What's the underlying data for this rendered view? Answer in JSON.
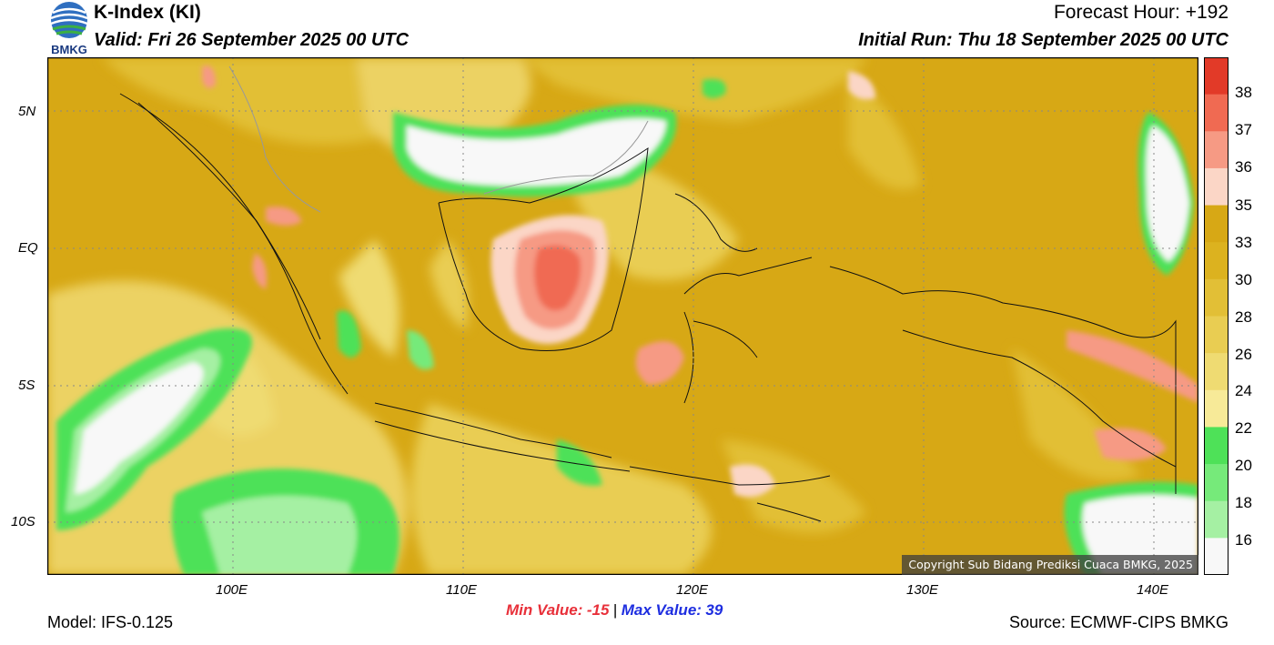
{
  "header": {
    "title": "K-Index (KI)",
    "valid": "Valid: Fri 26 September 2025 00 UTC",
    "forecast_hour": "Forecast Hour: +192",
    "initial_run": "Initial Run: Thu 18 September 2025 00 UTC",
    "logo_text": "BMKG"
  },
  "axes": {
    "lat_ticks": [
      "5N",
      "EQ",
      "5S",
      "10S"
    ],
    "lon_ticks": [
      "100E",
      "110E",
      "120E",
      "130E",
      "140E"
    ]
  },
  "colorbar": {
    "labels": [
      "38",
      "37",
      "36",
      "35",
      "33",
      "30",
      "28",
      "26",
      "24",
      "22",
      "20",
      "18",
      "16"
    ],
    "colors": [
      "#e23a28",
      "#f06a52",
      "#f69a84",
      "#fbd6c6",
      "#d7a815",
      "#dcb21f",
      "#e2bf36",
      "#e9cd52",
      "#efdb72",
      "#f7ea98",
      "#4ee158",
      "#76ea7a",
      "#a5f0a3",
      "#f8f8f8"
    ]
  },
  "footer": {
    "model": "Model: IFS-0.125",
    "min_label": "Min Value:",
    "min_value": "-15",
    "separator": "|",
    "max_label": "Max Value:",
    "max_value": "39",
    "source": "Source: ECMWF-CIPS BMKG",
    "copyright": "Copyright Sub Bidang Prediksi Cuaca BMKG, 2025"
  },
  "colors": {
    "min_value": "#e8303a",
    "max_value": "#1e2ee0"
  }
}
